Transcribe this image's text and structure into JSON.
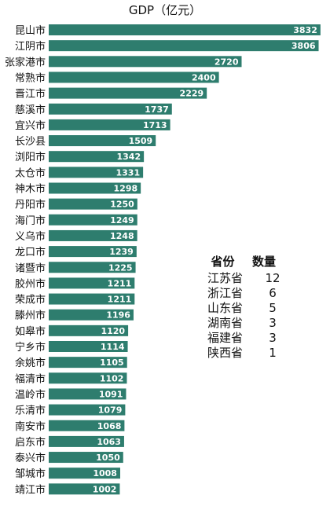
{
  "chart_data": {
    "type": "bar",
    "orientation": "horizontal",
    "title": "GDP（亿元）",
    "categories": [
      "昆山市",
      "江阴市",
      "张家港市",
      "常熟市",
      "晋江市",
      "慈溪市",
      "宜兴市",
      "长沙县",
      "浏阳市",
      "太仓市",
      "神木市",
      "丹阳市",
      "海门市",
      "义乌市",
      "龙口市",
      "诸暨市",
      "胶州市",
      "荣成市",
      "滕州市",
      "如皋市",
      "宁乡市",
      "余姚市",
      "福清市",
      "温岭市",
      "乐清市",
      "南安市",
      "启东市",
      "泰兴市",
      "邹城市",
      "靖江市"
    ],
    "values": [
      3832,
      3806,
      2720,
      2400,
      2229,
      1737,
      1713,
      1509,
      1342,
      1331,
      1298,
      1250,
      1249,
      1248,
      1239,
      1225,
      1211,
      1211,
      1196,
      1120,
      1114,
      1105,
      1102,
      1091,
      1079,
      1068,
      1063,
      1050,
      1008,
      1002
    ],
    "xlim": [
      0,
      3900
    ],
    "grid": false,
    "legend": "none",
    "colors": {
      "bar": "#2e7d6e",
      "value_label": "#ffffff"
    }
  },
  "table": {
    "headers": [
      "省份",
      "数量"
    ],
    "rows": [
      [
        "江苏省",
        "12"
      ],
      [
        "浙江省",
        "6"
      ],
      [
        "山东省",
        "5"
      ],
      [
        "湖南省",
        "3"
      ],
      [
        "福建省",
        "3"
      ],
      [
        "陕西省",
        "1"
      ]
    ]
  }
}
